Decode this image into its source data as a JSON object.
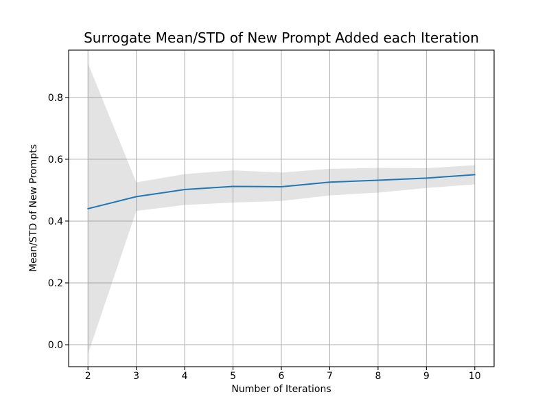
{
  "chart_data": {
    "type": "line",
    "title": "Surrogate Mean/STD of New Prompt Added each Iteration",
    "xlabel": "Number of Iterations",
    "ylabel": "Mean/STD of New Prompts",
    "x": [
      2,
      3,
      4,
      5,
      6,
      7,
      8,
      9,
      10
    ],
    "series": [
      {
        "name": "mean",
        "values": [
          0.44,
          0.479,
          0.502,
          0.512,
          0.511,
          0.526,
          0.532,
          0.539,
          0.55
        ]
      },
      {
        "name": "std",
        "values": [
          0.47,
          0.046,
          0.05,
          0.052,
          0.046,
          0.043,
          0.04,
          0.032,
          0.031
        ]
      }
    ],
    "band": "mean plus/minus std shaded region",
    "xticks": [
      2,
      3,
      4,
      5,
      6,
      7,
      8,
      9,
      10
    ],
    "yticks": [
      0.0,
      0.2,
      0.4,
      0.6,
      0.8
    ],
    "xlim": [
      1.6,
      10.4
    ],
    "ylim": [
      -0.071,
      0.953
    ],
    "grid": true,
    "legend_position": "none",
    "colors": {
      "line": "#1f77b4",
      "band": "#808080",
      "band_opacity": 0.22,
      "grid": "#b0b0b0",
      "spine": "#000000",
      "background": "#ffffff"
    }
  }
}
